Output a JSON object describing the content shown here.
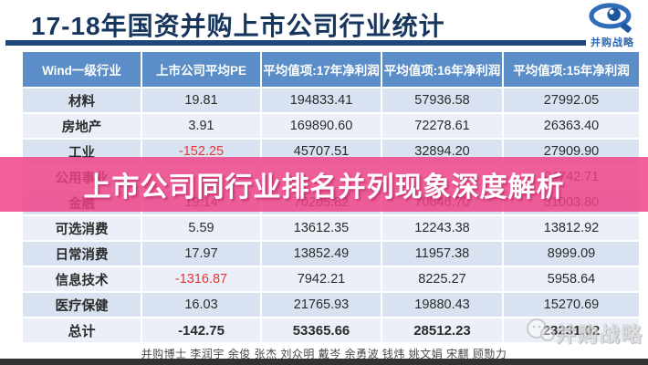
{
  "header": {
    "title": "17-18年国资并购上市公司行业统计",
    "logo_text": "并购战略"
  },
  "table": {
    "columns": [
      "Wind一级行业",
      "上市公司平均PE",
      "平均值项:17年净利润",
      "平均值项:16年净利润",
      "平均值项:15年净利润"
    ],
    "rows": [
      {
        "label": "材料",
        "pe": "19.81",
        "y17": "194833.41",
        "y16": "57936.58",
        "y15": "27992.05",
        "total": false
      },
      {
        "label": "房地产",
        "pe": "3.91",
        "y17": "169890.60",
        "y16": "72278.61",
        "y15": "26363.40",
        "total": false
      },
      {
        "label": "工业",
        "pe": "-152.25",
        "y17": "45707.51",
        "y16": "32894.20",
        "y15": "27909.90",
        "total": false
      },
      {
        "label": "公用事业",
        "pe": "",
        "y17": "",
        "y16": "",
        "y15": "24742.71",
        "total": false
      },
      {
        "label": "金融",
        "pe": "19.14",
        "y17": "70205.82",
        "y16": "70646.70",
        "y15": "31003.80",
        "total": false
      },
      {
        "label": "可选消费",
        "pe": "5.59",
        "y17": "13612.35",
        "y16": "12243.38",
        "y15": "13812.92",
        "total": false
      },
      {
        "label": "日常消费",
        "pe": "17.97",
        "y17": "13852.49",
        "y16": "11957.38",
        "y15": "8999.09",
        "total": false
      },
      {
        "label": "信息技术",
        "pe": "-1316.87",
        "y17": "7942.21",
        "y16": "8225.27",
        "y15": "5958.64",
        "total": false
      },
      {
        "label": "医疗保健",
        "pe": "16.03",
        "y17": "21765.93",
        "y16": "19880.43",
        "y15": "15270.69",
        "total": false
      },
      {
        "label": "总计",
        "pe": "-142.75",
        "y17": "53365.66",
        "y16": "28512.23",
        "y15": "23231.02",
        "total": true
      }
    ]
  },
  "banner": {
    "text": "上市公司同行业排名并列现象深度解析"
  },
  "watermark": {
    "text": "并购战略"
  },
  "footer": {
    "credits": "并购博士 李润宇 余俊 张杰 刘众明 戴岑 余勇波 钱炜 姚文娟 宋麒 顾勚力"
  },
  "colors": {
    "title_navy": "#17365d",
    "header_blue": "#5b8ec8",
    "row_dark": "#d8e2f1",
    "row_light": "#eaeff8",
    "negative_red": "#e03a3a",
    "banner_pink": "#ee4287",
    "brand_blue": "#2e67ad"
  }
}
